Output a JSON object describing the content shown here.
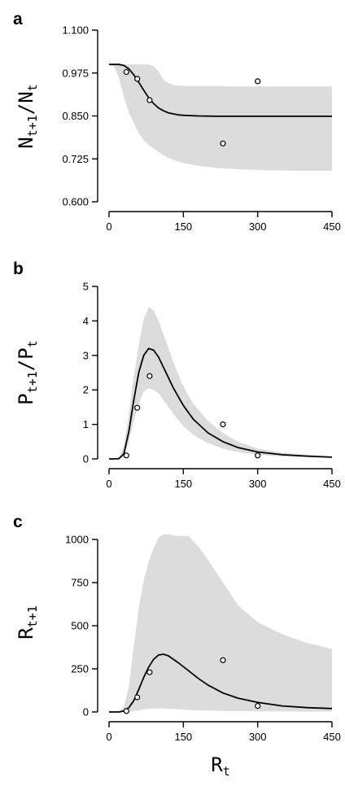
{
  "chart_data": [
    {
      "panel_label": "a",
      "type": "line",
      "ylabel": {
        "main": "N",
        "sub1": "t+1",
        "slash": "/N",
        "sub2": "t"
      },
      "xlim": [
        0,
        450
      ],
      "ylim": [
        0.6,
        1.1
      ],
      "xticks": [
        "0",
        "150",
        "300",
        "450"
      ],
      "yticks": [
        "0.600",
        "0.725",
        "0.850",
        "0.975",
        "1.100"
      ],
      "ytick_values": [
        0.6,
        0.725,
        0.85,
        0.975,
        1.1
      ],
      "points": {
        "x": [
          35,
          57,
          82,
          230,
          300
        ],
        "y": [
          0.978,
          0.958,
          0.896,
          0.77,
          0.951
        ]
      },
      "fit": {
        "x": [
          0,
          10,
          20,
          30,
          40,
          50,
          60,
          70,
          80,
          90,
          100,
          110,
          120,
          130,
          140,
          150,
          180,
          220,
          270,
          320,
          380,
          450
        ],
        "y": [
          1.0,
          1.0,
          1.0,
          0.997,
          0.987,
          0.97,
          0.948,
          0.925,
          0.903,
          0.886,
          0.873,
          0.865,
          0.859,
          0.856,
          0.853,
          0.852,
          0.85,
          0.849,
          0.849,
          0.849,
          0.849,
          0.849
        ]
      },
      "band": {
        "x": [
          0,
          10,
          20,
          30,
          40,
          50,
          60,
          70,
          80,
          90,
          100,
          110,
          120,
          130,
          140,
          150,
          180,
          220,
          270,
          320,
          380,
          450
        ],
        "lower": [
          1.0,
          0.995,
          0.96,
          0.905,
          0.86,
          0.83,
          0.8,
          0.78,
          0.765,
          0.755,
          0.745,
          0.735,
          0.728,
          0.722,
          0.717,
          0.713,
          0.705,
          0.698,
          0.694,
          0.692,
          0.69,
          0.69
        ],
        "upper": [
          1.0,
          1.0,
          1.0,
          1.0,
          1.0,
          1.0,
          1.0,
          1.0,
          1.0,
          0.995,
          0.98,
          0.955,
          0.945,
          0.94,
          0.938,
          0.937,
          0.937,
          0.937,
          0.936,
          0.936,
          0.936,
          0.936
        ]
      }
    },
    {
      "panel_label": "b",
      "type": "line",
      "ylabel": {
        "main": "P",
        "sub1": "t+1",
        "slash": "/P",
        "sub2": "t"
      },
      "xlim": [
        0,
        450
      ],
      "ylim": [
        0,
        5
      ],
      "xticks": [
        "0",
        "150",
        "300",
        "450"
      ],
      "yticks": [
        "0",
        "1",
        "2",
        "3",
        "4",
        "5"
      ],
      "ytick_values": [
        0,
        1,
        2,
        3,
        4,
        5
      ],
      "points": {
        "x": [
          35,
          57,
          82,
          230,
          300
        ],
        "y": [
          0.1,
          1.48,
          2.4,
          1.0,
          0.1
        ]
      },
      "fit": {
        "x": [
          0,
          10,
          20,
          30,
          40,
          50,
          60,
          70,
          80,
          90,
          100,
          110,
          120,
          130,
          150,
          170,
          200,
          230,
          260,
          300,
          350,
          400,
          450
        ],
        "y": [
          0,
          0,
          0.01,
          0.15,
          0.8,
          1.7,
          2.5,
          3.0,
          3.2,
          3.15,
          2.95,
          2.65,
          2.35,
          2.05,
          1.55,
          1.15,
          0.75,
          0.5,
          0.33,
          0.2,
          0.12,
          0.08,
          0.05
        ]
      },
      "band": {
        "x": [
          0,
          10,
          20,
          30,
          40,
          50,
          60,
          70,
          80,
          90,
          100,
          110,
          120,
          130,
          150,
          170,
          200,
          230,
          260,
          300,
          350,
          400,
          450
        ],
        "lower": [
          0,
          0,
          0,
          0.05,
          0.5,
          1.1,
          1.6,
          1.95,
          2.05,
          2.0,
          1.9,
          1.7,
          1.5,
          1.3,
          0.95,
          0.7,
          0.45,
          0.3,
          0.2,
          0.12,
          0.07,
          0.05,
          0.03
        ],
        "upper": [
          0,
          0,
          0.05,
          0.4,
          1.3,
          2.4,
          3.3,
          4.05,
          4.4,
          4.3,
          4.0,
          3.6,
          3.2,
          2.8,
          2.1,
          1.6,
          1.1,
          0.75,
          0.5,
          0.3,
          0.18,
          0.12,
          0.08
        ]
      }
    },
    {
      "panel_label": "c",
      "type": "line",
      "ylabel": {
        "main": "R",
        "sub1": "t+1",
        "slash": "",
        "sub2": ""
      },
      "xlabel": {
        "main": "R",
        "sub": "t"
      },
      "xlim": [
        0,
        450
      ],
      "ylim": [
        0,
        1000
      ],
      "xticks": [
        "0",
        "150",
        "300",
        "450"
      ],
      "yticks": [
        "0",
        "250",
        "500",
        "750",
        "1000"
      ],
      "ytick_values": [
        0,
        250,
        500,
        750,
        1000
      ],
      "points": {
        "x": [
          35,
          57,
          82,
          230,
          300
        ],
        "y": [
          5,
          85,
          230,
          300,
          35
        ]
      },
      "fit": {
        "x": [
          0,
          20,
          30,
          40,
          50,
          60,
          70,
          80,
          90,
          100,
          110,
          120,
          140,
          160,
          180,
          200,
          230,
          260,
          300,
          350,
          400,
          450
        ],
        "y": [
          0,
          0,
          5,
          25,
          65,
          130,
          200,
          260,
          305,
          330,
          335,
          325,
          285,
          240,
          195,
          155,
          110,
          80,
          55,
          35,
          25,
          20
        ]
      },
      "band": {
        "x": [
          0,
          20,
          30,
          40,
          50,
          60,
          70,
          80,
          90,
          100,
          110,
          120,
          140,
          160,
          180,
          200,
          230,
          260,
          300,
          350,
          400,
          450
        ],
        "lower": [
          0,
          0,
          0,
          0,
          5,
          10,
          15,
          18,
          20,
          20,
          20,
          18,
          15,
          12,
          10,
          8,
          6,
          5,
          4,
          3,
          2,
          2
        ],
        "upper": [
          0,
          0,
          30,
          150,
          380,
          600,
          760,
          870,
          950,
          1010,
          1030,
          1030,
          1020,
          1020,
          960,
          880,
          750,
          620,
          520,
          450,
          400,
          365
        ]
      }
    }
  ]
}
